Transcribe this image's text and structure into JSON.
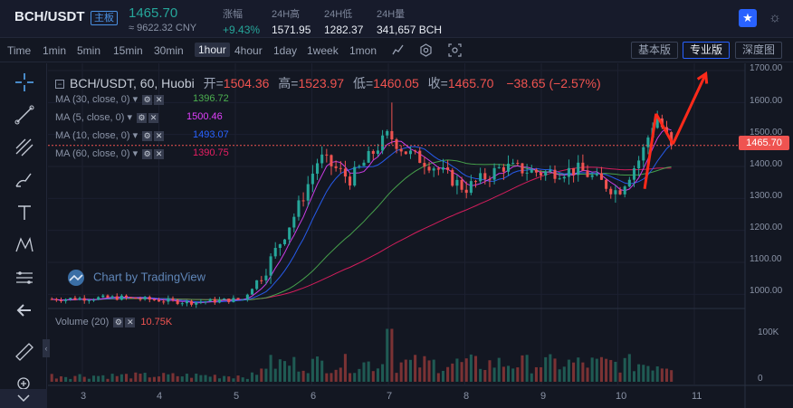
{
  "header": {
    "pair": "BCH/USDT",
    "badge": "主板",
    "price": "1465.70",
    "cny": "≈ 9622.32 CNY",
    "stats": [
      {
        "label": "涨幅",
        "value": "+9.43%"
      },
      {
        "label": "24H高",
        "value": "1571.95"
      },
      {
        "label": "24H低",
        "value": "1282.37"
      },
      {
        "label": "24H量",
        "value": "341,657 BCH"
      }
    ]
  },
  "toolbar": {
    "timeframes": [
      "Time",
      "1min",
      "5min",
      "15min",
      "30min",
      "1hour",
      "4hour",
      "1day",
      "1week",
      "1mon"
    ],
    "active_timeframe": "1hour",
    "versions": [
      "基本版",
      "专业版",
      "深度图"
    ],
    "active_version": "专业版"
  },
  "legend": {
    "title": "BCH/USDT, 60, Huobi",
    "open_label": "开=",
    "open": "1504.36",
    "high_label": "高=",
    "high": "1523.97",
    "low_label": "低=",
    "low": "1460.05",
    "close_label": "收=",
    "close": "1465.70",
    "change": "−38.65 (−2.57%)"
  },
  "ma": [
    {
      "label": "MA (30, close, 0)",
      "value": "1396.72",
      "color": "#4caf50"
    },
    {
      "label": "MA (5, close, 0)",
      "value": "1500.46",
      "color": "#e040fb"
    },
    {
      "label": "MA (10, close, 0)",
      "value": "1493.07",
      "color": "#2962ff"
    },
    {
      "label": "MA (60, close, 0)",
      "value": "1390.75",
      "color": "#e91e63"
    }
  ],
  "volume": {
    "label": "Volume (20)",
    "value": "10.75K"
  },
  "watermark": "Chart by TradingView",
  "price_axis": [
    "1700.00",
    "1600.00",
    "1500.00",
    "1400.00",
    "1300.00",
    "1200.00",
    "1100.00",
    "1000.00"
  ],
  "last_price_tag": "1465.70",
  "volume_axis": [
    "100K",
    "0"
  ],
  "time_axis": [
    "3",
    "4",
    "5",
    "6",
    "7",
    "8",
    "9",
    "10",
    "11"
  ],
  "colors": {
    "up": "#26a69a",
    "down": "#ef5350",
    "background": "#131722",
    "accent": "#2962ff",
    "annotation": "#ff2a1a"
  },
  "chart_data": {
    "type": "candlestick",
    "title": "BCH/USDT, 60, Huobi",
    "ylim": [
      950,
      1700
    ],
    "x_ticks": [
      "3",
      "4",
      "5",
      "6",
      "7",
      "8",
      "9",
      "10",
      "11"
    ],
    "ohlc_keypoints": [
      {
        "day": 2.6,
        "close": 985
      },
      {
        "day": 3.5,
        "close": 990
      },
      {
        "day": 4.4,
        "close": 975
      },
      {
        "day": 5.1,
        "close": 985
      },
      {
        "day": 5.4,
        "close": 1080
      },
      {
        "day": 5.8,
        "close": 1260
      },
      {
        "day": 6.1,
        "close": 1430
      },
      {
        "day": 6.5,
        "close": 1360
      },
      {
        "day": 7.0,
        "close": 1500
      },
      {
        "day": 7.2,
        "close": 1450
      },
      {
        "day": 7.6,
        "close": 1400
      },
      {
        "day": 8.0,
        "close": 1330
      },
      {
        "day": 8.5,
        "close": 1400
      },
      {
        "day": 9.0,
        "close": 1380
      },
      {
        "day": 9.5,
        "close": 1390
      },
      {
        "day": 10.0,
        "close": 1320
      },
      {
        "day": 10.3,
        "close": 1430
      },
      {
        "day": 10.5,
        "close": 1560
      },
      {
        "day": 10.7,
        "close": 1466
      }
    ],
    "last_close": 1465.7,
    "annotations": "red arrows drawn on chart pointing up"
  }
}
